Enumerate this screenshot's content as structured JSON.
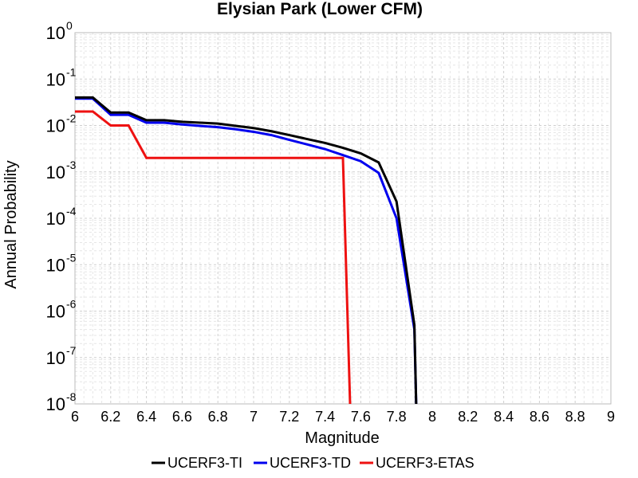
{
  "chart_data": {
    "type": "line",
    "title": "Elysian Park (Lower CFM)",
    "xlabel": "Magnitude",
    "ylabel": "Annual Probability",
    "xlim": [
      6,
      9
    ],
    "ylim": [
      1e-08,
      1
    ],
    "yscale": "log",
    "grid": true,
    "legend_position": "bottom",
    "xticks": [
      "6",
      "6.2",
      "6.4",
      "6.6",
      "6.8",
      "7",
      "7.2",
      "7.4",
      "7.6",
      "7.8",
      "8",
      "8.2",
      "8.4",
      "8.6",
      "8.8",
      "9"
    ],
    "ytick_exponents": [
      "0",
      "-1",
      "-2",
      "-3",
      "-4",
      "-5",
      "-6",
      "-7",
      "-8"
    ],
    "ytick_base": "10",
    "series": [
      {
        "name": "UCERF3-TI",
        "color": "#000000",
        "x": [
          6.0,
          6.1,
          6.2,
          6.3,
          6.4,
          6.5,
          6.6,
          6.7,
          6.8,
          6.9,
          7.0,
          7.1,
          7.2,
          7.3,
          7.4,
          7.5,
          7.6,
          7.7,
          7.8,
          7.9,
          7.91
        ],
        "y": [
          0.04,
          0.04,
          0.019,
          0.019,
          0.013,
          0.013,
          0.012,
          0.0115,
          0.011,
          0.0098,
          0.0088,
          0.0075,
          0.0062,
          0.0051,
          0.0042,
          0.0033,
          0.0025,
          0.0016,
          0.00023,
          5e-07,
          1e-08
        ]
      },
      {
        "name": "UCERF3-TD",
        "color": "#0000ee",
        "x": [
          6.0,
          6.1,
          6.2,
          6.3,
          6.4,
          6.5,
          6.6,
          6.7,
          6.8,
          6.9,
          7.0,
          7.1,
          7.2,
          7.3,
          7.4,
          7.5,
          7.6,
          7.7,
          7.8,
          7.9,
          7.91
        ],
        "y": [
          0.038,
          0.038,
          0.017,
          0.017,
          0.0115,
          0.0115,
          0.0105,
          0.0098,
          0.0092,
          0.0083,
          0.0073,
          0.0062,
          0.0049,
          0.0039,
          0.0031,
          0.0023,
          0.0017,
          0.00095,
          0.0001,
          4e-07,
          1e-08
        ]
      },
      {
        "name": "UCERF3-ETAS",
        "color": "#ee1111",
        "x": [
          6.0,
          6.1,
          6.2,
          6.3,
          6.4,
          6.5,
          6.6,
          6.7,
          6.8,
          6.9,
          7.0,
          7.1,
          7.2,
          7.3,
          7.4,
          7.5,
          7.54
        ],
        "y": [
          0.02,
          0.02,
          0.01,
          0.01,
          0.002,
          0.002,
          0.002,
          0.002,
          0.002,
          0.002,
          0.002,
          0.002,
          0.002,
          0.002,
          0.002,
          0.002,
          1e-08
        ]
      }
    ]
  }
}
